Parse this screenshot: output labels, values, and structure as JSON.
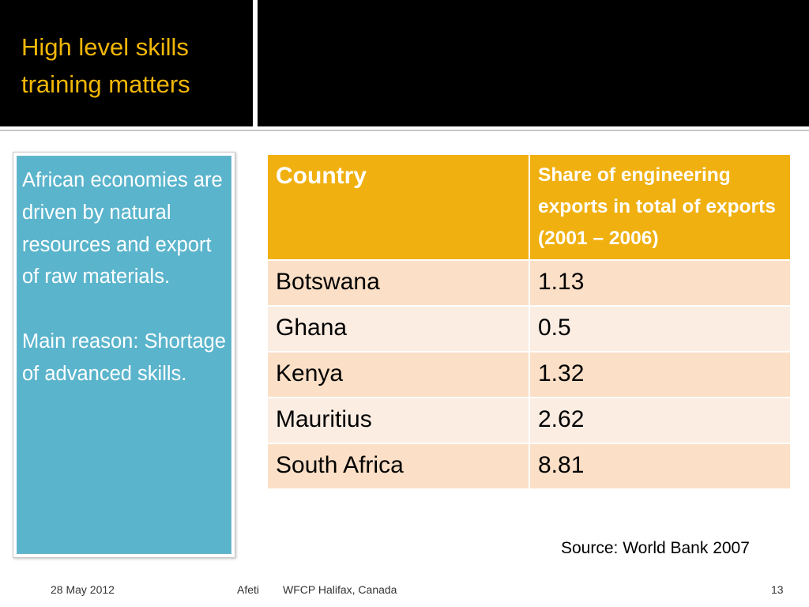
{
  "title": {
    "line1": "High level skills",
    "line2": "training matters"
  },
  "callout": {
    "paragraph1": "African economies are driven by natural resources and export of raw materials.",
    "paragraph2": "Main reason: Shortage of advanced skills."
  },
  "table": {
    "headers": [
      "Country",
      "Share of engineering exports in total of exports (2001 – 2006)"
    ],
    "rows": [
      {
        "country": "Botswana",
        "share": "1.13"
      },
      {
        "country": "Ghana",
        "share": "0.5"
      },
      {
        "country": "Kenya",
        "share": "1.32"
      },
      {
        "country": "Mauritius",
        "share": "2.62"
      },
      {
        "country": "South Africa",
        "share": "8.81"
      }
    ]
  },
  "source": "Source: World Bank 2007",
  "footer": {
    "date": "28 May 2012",
    "author": "Afeti",
    "event": "WFCP Halifax, Canada",
    "page": "13"
  },
  "colors": {
    "title_text": "#f2b705",
    "header_fill": "#f0b010",
    "row_dark": "#fbdfc6",
    "row_light": "#fbede2",
    "callout_fill": "#5ab4cc"
  }
}
